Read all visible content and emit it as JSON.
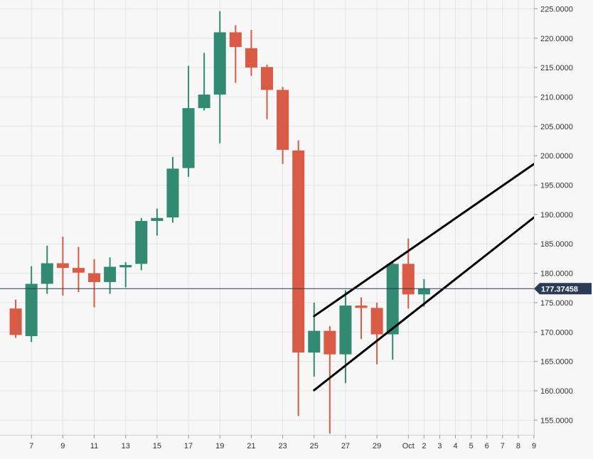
{
  "colors": {
    "background": "#f7f7f7",
    "grid": "#e4e4e4",
    "up": "#338a72",
    "down": "#d95b45",
    "last_price_line": "#2b3a55",
    "price_tag": "#2b3a55",
    "trendline": "#000000"
  },
  "chart_data": {
    "type": "candlestick",
    "title": "",
    "xlabel": "",
    "ylabel": "",
    "grid": true,
    "ylim": [
      152.5,
      226.5
    ],
    "xlim": [
      "2021-09-05 12:00",
      "2021-10-09 12:00"
    ],
    "y_ticks": [
      "225.0000",
      "220.0000",
      "215.0000",
      "210.0000",
      "205.0000",
      "200.0000",
      "195.0000",
      "190.0000",
      "185.0000",
      "180.0000",
      "175.0000",
      "170.0000",
      "165.0000",
      "160.0000",
      "155.0000"
    ],
    "x_ticks": [
      {
        "date": "2021-09-07",
        "label": "7"
      },
      {
        "date": "2021-09-09",
        "label": "9"
      },
      {
        "date": "2021-09-11",
        "label": "11"
      },
      {
        "date": "2021-09-13",
        "label": "13"
      },
      {
        "date": "2021-09-15",
        "label": "15"
      },
      {
        "date": "2021-09-17",
        "label": "17"
      },
      {
        "date": "2021-09-19",
        "label": "19"
      },
      {
        "date": "2021-09-21",
        "label": "21"
      },
      {
        "date": "2021-09-23",
        "label": "23"
      },
      {
        "date": "2021-09-25",
        "label": "25"
      },
      {
        "date": "2021-09-27",
        "label": "27"
      },
      {
        "date": "2021-09-29",
        "label": "29"
      },
      {
        "date": "2021-10-01",
        "label": "Oct"
      },
      {
        "date": "2021-10-02",
        "label": "2"
      },
      {
        "date": "2021-10-03",
        "label": "3"
      },
      {
        "date": "2021-10-04",
        "label": "4"
      },
      {
        "date": "2021-10-05",
        "label": "5"
      },
      {
        "date": "2021-10-06",
        "label": "6"
      },
      {
        "date": "2021-10-07",
        "label": "7"
      },
      {
        "date": "2021-10-08",
        "label": "8"
      },
      {
        "date": "2021-10-09",
        "label": "9"
      }
    ],
    "candles": [
      {
        "date": "2021-09-06",
        "open": 174.0,
        "high": 175.5,
        "low": 169.0,
        "close": 169.5
      },
      {
        "date": "2021-09-07",
        "open": 169.3,
        "high": 181.2,
        "low": 168.3,
        "close": 178.2
      },
      {
        "date": "2021-09-08",
        "open": 178.2,
        "high": 184.7,
        "low": 176.5,
        "close": 181.7
      },
      {
        "date": "2021-09-09",
        "open": 181.7,
        "high": 186.2,
        "low": 176.2,
        "close": 180.9
      },
      {
        "date": "2021-09-10",
        "open": 180.9,
        "high": 184.5,
        "low": 176.8,
        "close": 180.1
      },
      {
        "date": "2021-09-11",
        "open": 180.0,
        "high": 182.4,
        "low": 174.2,
        "close": 178.5
      },
      {
        "date": "2021-09-12",
        "open": 178.5,
        "high": 182.7,
        "low": 176.5,
        "close": 181.1
      },
      {
        "date": "2021-09-13",
        "open": 181.0,
        "high": 181.9,
        "low": 177.6,
        "close": 181.4
      },
      {
        "date": "2021-09-14",
        "open": 181.6,
        "high": 189.4,
        "low": 180.5,
        "close": 188.9
      },
      {
        "date": "2021-09-15",
        "open": 188.9,
        "high": 191.0,
        "low": 186.4,
        "close": 189.4
      },
      {
        "date": "2021-09-16",
        "open": 189.5,
        "high": 199.8,
        "low": 188.6,
        "close": 197.8
      },
      {
        "date": "2021-09-17",
        "open": 197.9,
        "high": 215.3,
        "low": 196.4,
        "close": 208.1
      },
      {
        "date": "2021-09-18",
        "open": 208.1,
        "high": 217.5,
        "low": 207.7,
        "close": 210.4
      },
      {
        "date": "2021-09-19",
        "open": 210.4,
        "high": 224.6,
        "low": 202.1,
        "close": 221.0
      },
      {
        "date": "2021-09-20",
        "open": 221.0,
        "high": 222.2,
        "low": 212.4,
        "close": 218.5
      },
      {
        "date": "2021-09-21",
        "open": 218.3,
        "high": 221.4,
        "low": 213.6,
        "close": 215.0
      },
      {
        "date": "2021-09-22",
        "open": 215.1,
        "high": 215.5,
        "low": 206.2,
        "close": 211.2
      },
      {
        "date": "2021-09-23",
        "open": 211.2,
        "high": 211.7,
        "low": 198.6,
        "close": 201.0
      },
      {
        "date": "2021-09-24",
        "open": 200.9,
        "high": 202.6,
        "low": 155.7,
        "close": 166.5
      },
      {
        "date": "2021-09-25",
        "open": 166.5,
        "high": 175.0,
        "low": 162.4,
        "close": 170.2
      },
      {
        "date": "2021-09-26",
        "open": 170.2,
        "high": 171.0,
        "low": 152.7,
        "close": 166.2
      },
      {
        "date": "2021-09-27",
        "open": 166.2,
        "high": 177.1,
        "low": 161.3,
        "close": 174.5
      },
      {
        "date": "2021-09-28",
        "open": 174.5,
        "high": 175.9,
        "low": 168.8,
        "close": 174.1
      },
      {
        "date": "2021-09-29",
        "open": 174.1,
        "high": 175.0,
        "low": 164.5,
        "close": 169.6
      },
      {
        "date": "2021-09-30",
        "open": 169.6,
        "high": 181.8,
        "low": 165.3,
        "close": 181.6
      },
      {
        "date": "2021-10-01",
        "open": 181.6,
        "high": 185.9,
        "low": 174.0,
        "close": 176.4
      },
      {
        "date": "2021-10-02",
        "open": 176.4,
        "high": 179.0,
        "low": 174.3,
        "close": 177.4
      }
    ],
    "last_price": 177.37458,
    "last_price_label": "177.37458",
    "trendlines": [
      {
        "start": {
          "date": "2021-09-25",
          "value": 172.7
        },
        "end": {
          "date": "2021-10-09 12:00",
          "value": 198.6
        }
      },
      {
        "start": {
          "date": "2021-09-25",
          "value": 160.1
        },
        "end": {
          "date": "2021-10-09 12:00",
          "value": 189.5
        }
      }
    ]
  }
}
